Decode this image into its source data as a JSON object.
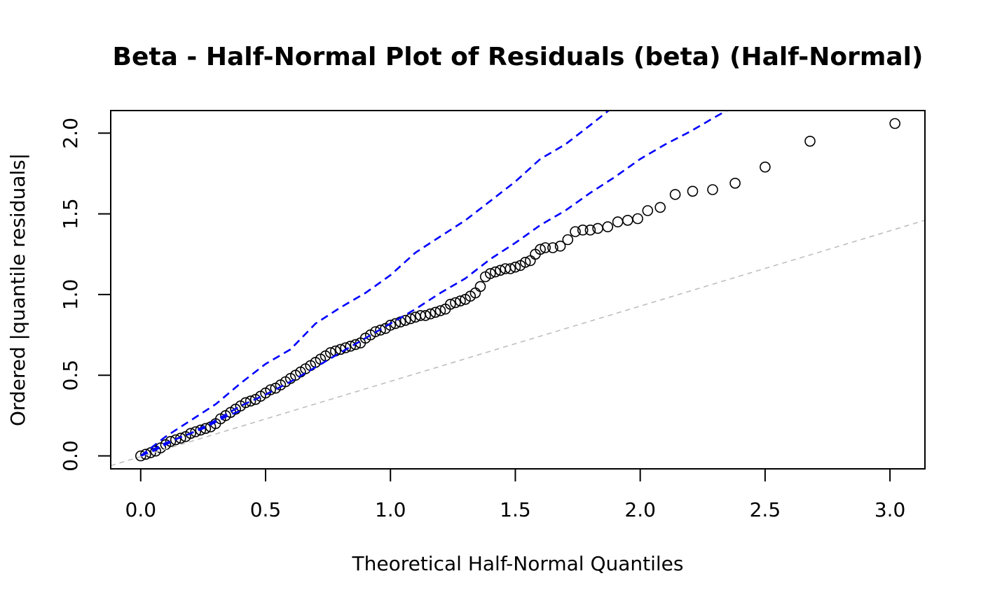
{
  "chart_data": {
    "type": "scatter",
    "title": "Beta - Half-Normal Plot of Residuals (beta) (Half-Normal)",
    "xlabel": "Theoretical Half-Normal Quantiles",
    "ylabel": "Ordered |quantile residuals|",
    "xlim": [
      -0.12,
      3.14
    ],
    "ylim": [
      -0.08,
      2.14
    ],
    "xticks": [
      "0.0",
      "0.5",
      "1.0",
      "1.5",
      "2.0",
      "2.5",
      "3.0"
    ],
    "yticks": [
      "0.0",
      "0.5",
      "1.0",
      "1.5",
      "2.0"
    ],
    "grid": false,
    "series": [
      {
        "kind": "points",
        "marker": "open-circle",
        "color": "#000000",
        "x": [
          0.0,
          0.02,
          0.04,
          0.06,
          0.08,
          0.1,
          0.12,
          0.14,
          0.16,
          0.18,
          0.2,
          0.22,
          0.24,
          0.26,
          0.28,
          0.3,
          0.32,
          0.34,
          0.36,
          0.38,
          0.4,
          0.42,
          0.44,
          0.46,
          0.48,
          0.5,
          0.52,
          0.54,
          0.56,
          0.58,
          0.6,
          0.62,
          0.64,
          0.66,
          0.68,
          0.7,
          0.72,
          0.74,
          0.76,
          0.78,
          0.8,
          0.82,
          0.84,
          0.86,
          0.88,
          0.9,
          0.92,
          0.94,
          0.96,
          0.98,
          1.0,
          1.02,
          1.04,
          1.06,
          1.08,
          1.1,
          1.12,
          1.14,
          1.16,
          1.18,
          1.2,
          1.22,
          1.24,
          1.26,
          1.28,
          1.3,
          1.32,
          1.34,
          1.36,
          1.38,
          1.4,
          1.42,
          1.44,
          1.46,
          1.48,
          1.5,
          1.52,
          1.54,
          1.56,
          1.58,
          1.6,
          1.62,
          1.65,
          1.68,
          1.71,
          1.74,
          1.77,
          1.8,
          1.83,
          1.87,
          1.91,
          1.95,
          1.99,
          2.03,
          2.08,
          2.14,
          2.21,
          2.29,
          2.38,
          2.5,
          2.68,
          3.02
        ],
        "y": [
          0.0,
          0.01,
          0.02,
          0.03,
          0.05,
          0.07,
          0.09,
          0.1,
          0.11,
          0.12,
          0.14,
          0.15,
          0.16,
          0.17,
          0.18,
          0.2,
          0.23,
          0.25,
          0.27,
          0.29,
          0.31,
          0.33,
          0.34,
          0.35,
          0.37,
          0.39,
          0.41,
          0.42,
          0.44,
          0.46,
          0.48,
          0.5,
          0.52,
          0.54,
          0.56,
          0.58,
          0.6,
          0.62,
          0.64,
          0.65,
          0.66,
          0.67,
          0.68,
          0.69,
          0.7,
          0.73,
          0.75,
          0.77,
          0.78,
          0.79,
          0.81,
          0.82,
          0.83,
          0.84,
          0.85,
          0.86,
          0.87,
          0.87,
          0.88,
          0.89,
          0.9,
          0.91,
          0.94,
          0.95,
          0.96,
          0.97,
          0.99,
          1.01,
          1.05,
          1.11,
          1.13,
          1.14,
          1.15,
          1.16,
          1.16,
          1.17,
          1.18,
          1.2,
          1.21,
          1.25,
          1.28,
          1.29,
          1.29,
          1.3,
          1.34,
          1.39,
          1.4,
          1.4,
          1.41,
          1.42,
          1.45,
          1.46,
          1.47,
          1.52,
          1.54,
          1.62,
          1.64,
          1.65,
          1.69,
          1.79,
          1.95,
          2.06
        ]
      },
      {
        "kind": "envelope-upper",
        "color": "#0000ff",
        "dash": "dashed",
        "x": [
          0.0,
          0.1,
          0.2,
          0.3,
          0.4,
          0.5,
          0.6,
          0.7,
          0.8,
          0.9,
          1.0,
          1.1,
          1.2,
          1.3,
          1.4,
          1.5,
          1.6,
          1.7,
          1.8,
          1.89
        ],
        "y": [
          0.0,
          0.12,
          0.22,
          0.32,
          0.45,
          0.57,
          0.66,
          0.82,
          0.92,
          1.01,
          1.12,
          1.26,
          1.36,
          1.46,
          1.58,
          1.7,
          1.84,
          1.93,
          2.05,
          2.16
        ]
      },
      {
        "kind": "envelope-middle",
        "color": "#0000ff",
        "dash": "dashed",
        "x": [
          0.0,
          0.1,
          0.2,
          0.3,
          0.4,
          0.5,
          0.6,
          0.7,
          0.8,
          0.9,
          1.0,
          1.1,
          1.2,
          1.3,
          1.4,
          1.5,
          1.6,
          1.7,
          1.8,
          1.9,
          2.0,
          2.1,
          2.2,
          2.3,
          2.37
        ],
        "y": [
          0.0,
          0.08,
          0.14,
          0.22,
          0.31,
          0.38,
          0.46,
          0.55,
          0.64,
          0.73,
          0.82,
          0.91,
          1.01,
          1.1,
          1.22,
          1.32,
          1.43,
          1.52,
          1.63,
          1.73,
          1.84,
          1.93,
          2.01,
          2.1,
          2.16
        ]
      },
      {
        "kind": "envelope-lower",
        "color": "#0000ff",
        "dash": "dashed",
        "x": [
          0.0,
          0.05,
          0.1,
          0.15,
          0.2,
          0.25,
          0.3,
          0.35,
          0.4
        ],
        "y": [
          0.0,
          0.03,
          0.07,
          0.11,
          0.14,
          0.17,
          0.21,
          0.25,
          0.28
        ]
      },
      {
        "kind": "reference-line",
        "color": "#bebebe",
        "dash": "dashed",
        "x": [
          -0.12,
          3.14
        ],
        "y": [
          -0.06,
          1.46
        ]
      }
    ]
  }
}
